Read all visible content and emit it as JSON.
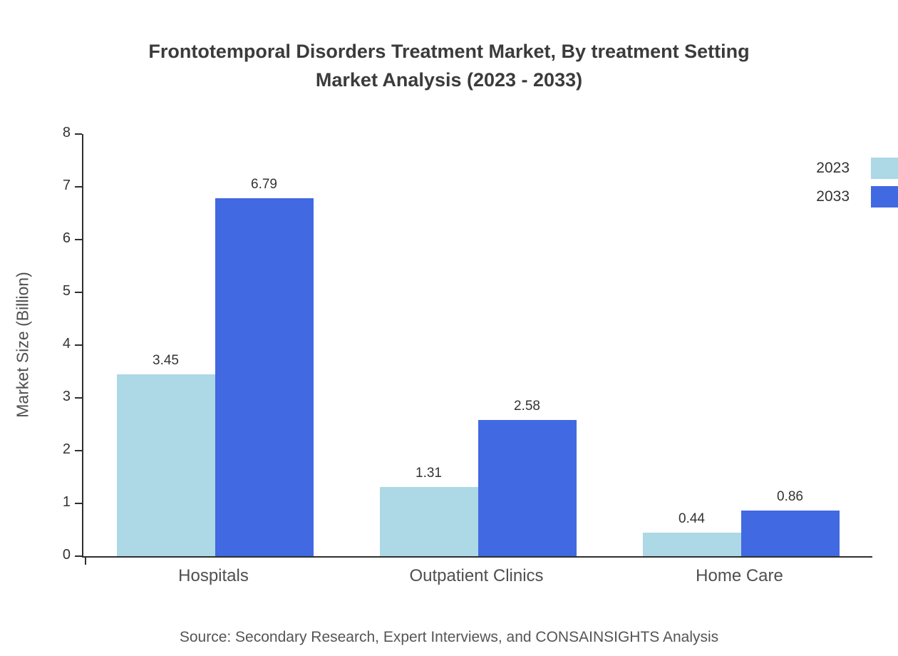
{
  "title": {
    "line1": "Frontotemporal Disorders Treatment Market, By treatment Setting",
    "line2": "Market Analysis (2023 - 2033)"
  },
  "chart_data": {
    "type": "bar",
    "title": "Frontotemporal Disorders Treatment Market, By treatment Setting Market Analysis (2023 - 2033)",
    "categories": [
      "Hospitals",
      "Outpatient Clinics",
      "Home Care"
    ],
    "series": [
      {
        "name": "2023",
        "color": "#ADD8E6",
        "values": [
          3.45,
          1.31,
          0.44
        ]
      },
      {
        "name": "2033",
        "color": "#4169E1",
        "values": [
          6.79,
          2.58,
          0.86
        ]
      }
    ],
    "xlabel": "",
    "ylabel": "Market Size (Billion)",
    "ylim": [
      0,
      8
    ],
    "yticks": [
      0,
      1,
      2,
      3,
      4,
      5,
      6,
      7,
      8
    ],
    "grid": false,
    "legend_position": "top-right",
    "value_label_decimals": 2
  },
  "source": "Source: Secondary Research, Expert Interviews, and CONSAINSIGHTS Analysis"
}
